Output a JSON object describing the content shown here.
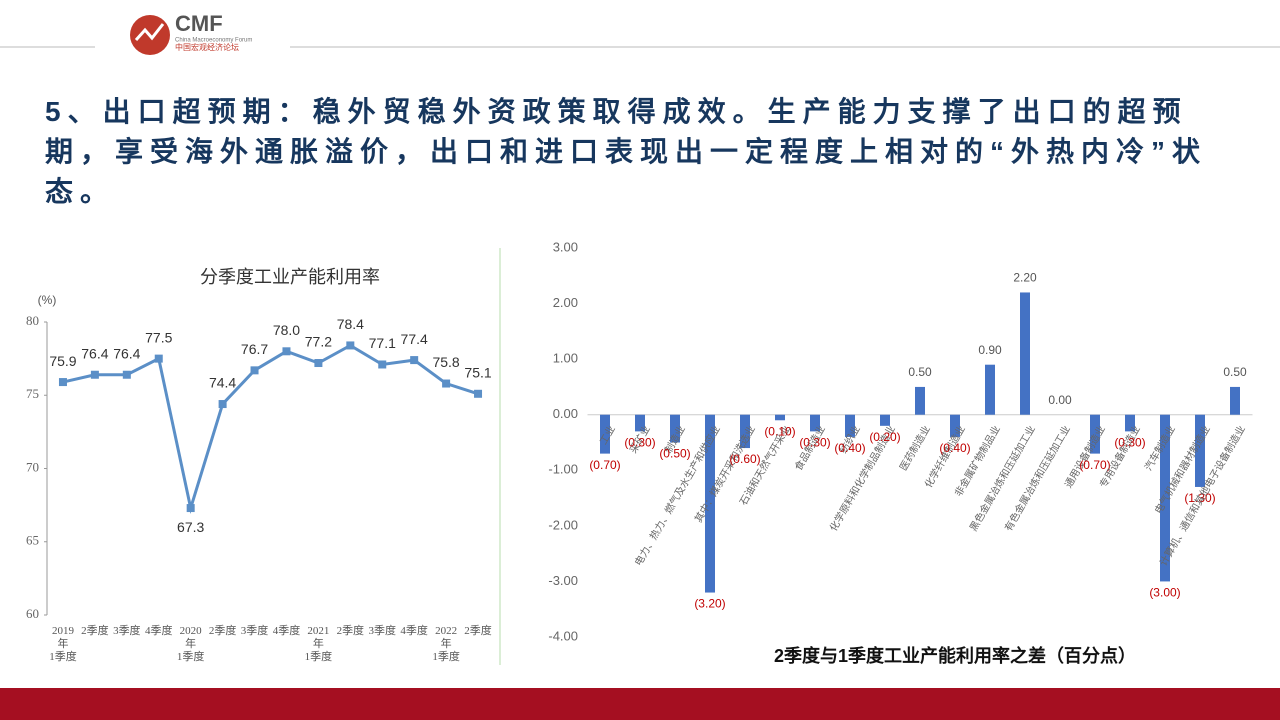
{
  "header": {
    "logo": "CMF",
    "logo_sub": "China Macroeconomy Forum",
    "logo_cn": "中国宏观经济论坛",
    "heading": "5、出口超预期：稳外贸稳外资政策取得成效。生产能力支撑了出口的超预期，享受海外通胀溢价，出口和进口表现出一定程度上相对的“外热内冷”状态。"
  },
  "chart_data": [
    {
      "type": "line",
      "title": "分季度工业产能利用率",
      "y_label": "(%)",
      "categories": [
        "2019年\n1季度",
        "2季度",
        "3季度",
        "4季度",
        "2020年\n1季度",
        "2季度",
        "3季度",
        "4季度",
        "2021年\n1季度",
        "2季度",
        "3季度",
        "4季度",
        "2022年\n1季度",
        "2季度"
      ],
      "values": [
        75.9,
        76.4,
        76.4,
        77.5,
        67.3,
        74.4,
        76.7,
        78.0,
        77.2,
        78.4,
        77.1,
        77.4,
        75.8,
        75.1
      ],
      "value_labels": [
        "75.9",
        "76.4",
        "76.4",
        "77.5",
        "67.3",
        "74.4",
        "76.7",
        "78.0",
        "77.2",
        "78.4",
        "77.1",
        "77.4",
        "75.8",
        "75.1"
      ],
      "color": "#5b8fc7",
      "ylim": [
        60,
        80
      ],
      "yticks": [
        60,
        65,
        70,
        75,
        80
      ]
    },
    {
      "type": "bar",
      "title": "2季度与1季度工业产能利用率之差（百分点）",
      "categories": [
        "工业",
        "采矿业",
        "制造业",
        "电力、热力、燃气及水生产和供应业",
        "其中：煤炭开采和洗选业",
        "石油和天然气开采业",
        "食品制造业",
        "纺织业",
        "化学原料和化学制品制造业",
        "医药制造业",
        "化学纤维制造业",
        "非金属矿物制品业",
        "黑色金属冶炼和压延加工业",
        "有色金属冶炼和压延加工业",
        "通用设备制造业",
        "专用设备制造业",
        "汽车制造业",
        "电气机械和器材制造业",
        "计算机、通信和其他电子设备制造业"
      ],
      "values": [
        -0.7,
        -0.3,
        -0.5,
        -3.2,
        -0.6,
        -0.1,
        -0.3,
        -0.4,
        -0.2,
        0.5,
        -0.4,
        0.9,
        2.2,
        0.0,
        -0.7,
        -0.3,
        -3.0,
        -1.3,
        0.5
      ],
      "value_labels": [
        "(0.70)",
        "(0.30)",
        "(0.50)",
        "(3.20)",
        "(0.60)",
        "(0.10)",
        "(0.30)",
        "(0.40)",
        "(0.20)",
        "0.50",
        "(0.40)",
        "0.90",
        "2.20",
        "0.00",
        "(0.70)",
        "(0.30)",
        "(3.00)",
        "(1.30)",
        "0.50"
      ],
      "color": "#4472c4",
      "ylim": [
        -4,
        3
      ],
      "yticks": [
        {
          "value": -4,
          "label": "-4.00"
        },
        {
          "value": -3,
          "label": "-3.00"
        },
        {
          "value": -2,
          "label": "-2.00"
        },
        {
          "value": -1,
          "label": "-1.00"
        },
        {
          "value": 0,
          "label": "0.00"
        },
        {
          "value": 1,
          "label": "1.00"
        },
        {
          "value": 2,
          "label": "2.00"
        },
        {
          "value": 3,
          "label": "3.00"
        }
      ]
    }
  ]
}
